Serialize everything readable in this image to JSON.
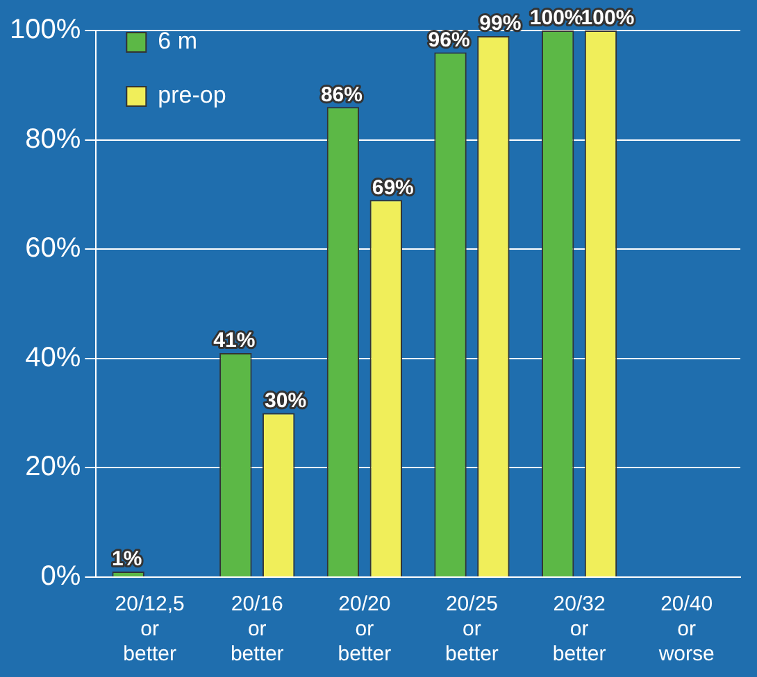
{
  "chart_data": {
    "type": "bar",
    "categories": [
      "20/12,5 or better",
      "20/16 or better",
      "20/20 or better",
      "20/25 or better",
      "20/32 or better",
      "20/40 or worse"
    ],
    "series": [
      {
        "name": "6 m",
        "color": "#5cb846",
        "values": [
          1,
          41,
          86,
          96,
          100,
          0
        ],
        "value_labels": [
          "1%",
          "41%",
          "86%",
          "96%",
          "100%",
          null
        ]
      },
      {
        "name": "pre-op",
        "color": "#f0ee5a",
        "values": [
          0,
          30,
          69,
          99,
          100,
          0
        ],
        "value_labels": [
          null,
          "30%",
          "69%",
          "99%",
          "100%",
          null
        ]
      }
    ],
    "ylim": [
      0,
      100
    ],
    "yticks": [
      {
        "value": 0,
        "label": "0%"
      },
      {
        "value": 20,
        "label": "20%"
      },
      {
        "value": 40,
        "label": "40%"
      },
      {
        "value": 60,
        "label": "60%"
      },
      {
        "value": 80,
        "label": "80%"
      },
      {
        "value": 100,
        "label": "100%"
      }
    ],
    "grid": "y",
    "legend": "top left"
  }
}
